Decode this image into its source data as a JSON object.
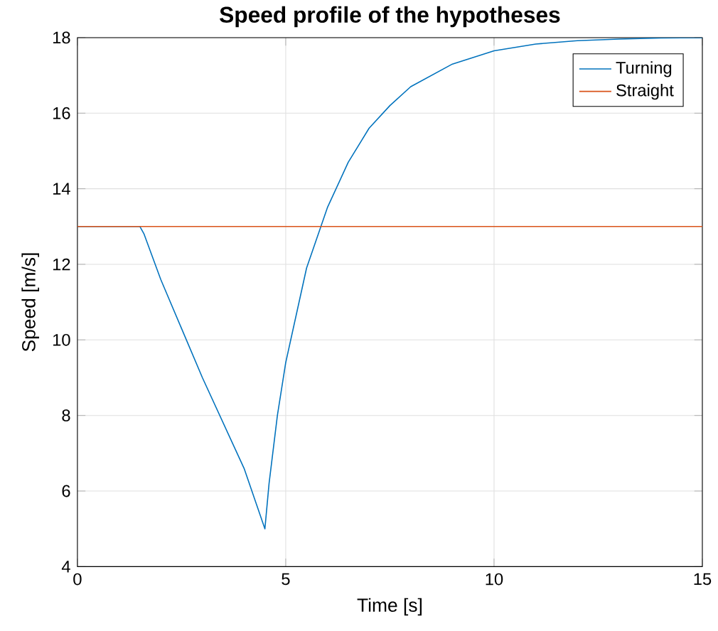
{
  "chart_data": {
    "type": "line",
    "title": "Speed profile of the hypotheses",
    "xlabel": "Time [s]",
    "ylabel": "Speed [m/s]",
    "xlim": [
      0,
      15
    ],
    "ylim": [
      4,
      18
    ],
    "xticks": [
      0,
      5,
      10,
      15
    ],
    "yticks": [
      4,
      6,
      8,
      10,
      12,
      14,
      16,
      18
    ],
    "grid": true,
    "legend": "top right",
    "series": [
      {
        "name": "Turning",
        "color": "#0072bd",
        "x": [
          0,
          1.5,
          1.6,
          2,
          2.5,
          3,
          3.5,
          4,
          4.5,
          4.6,
          4.8,
          5,
          5.5,
          6,
          6.5,
          7,
          7.5,
          8,
          9,
          10,
          11,
          12,
          13,
          14,
          15
        ],
        "values": [
          13,
          13,
          12.8,
          11.6,
          10.3,
          9.0,
          7.8,
          6.6,
          5.0,
          6.2,
          8.0,
          9.4,
          11.9,
          13.5,
          14.7,
          15.6,
          16.2,
          16.7,
          17.3,
          17.65,
          17.83,
          17.92,
          17.96,
          17.99,
          18
        ]
      },
      {
        "name": "Straight",
        "color": "#d95319",
        "x": [
          0,
          15
        ],
        "values": [
          13,
          13
        ]
      }
    ]
  }
}
